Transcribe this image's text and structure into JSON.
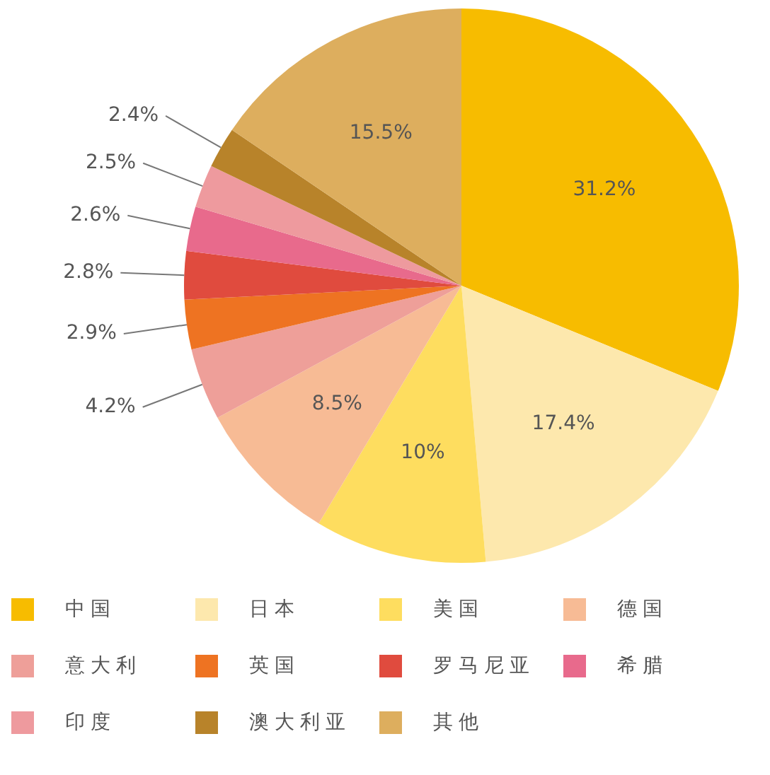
{
  "chart_data": {
    "type": "pie",
    "categories": [
      "中国",
      "日本",
      "美国",
      "德国",
      "意大利",
      "英国",
      "罗马尼亚",
      "希腊",
      "印度",
      "澳大利亚",
      "其他"
    ],
    "values": [
      31.2,
      17.4,
      10,
      8.5,
      4.2,
      2.9,
      2.8,
      2.6,
      2.5,
      2.4,
      15.5
    ],
    "value_labels": [
      "31.2%",
      "17.4%",
      "10%",
      "8.5%",
      "4.2%",
      "2.9%",
      "2.8%",
      "2.6%",
      "2.5%",
      "2.4%",
      "15.5%"
    ],
    "colors": [
      "#f7bc00",
      "#fde8ad",
      "#fedd5f",
      "#f7bb95",
      "#ee9f99",
      "#ee7322",
      "#e04b3e",
      "#e86a8c",
      "#ee9a9e",
      "#b8832a",
      "#ddae5e"
    ],
    "legend": "bottom"
  }
}
